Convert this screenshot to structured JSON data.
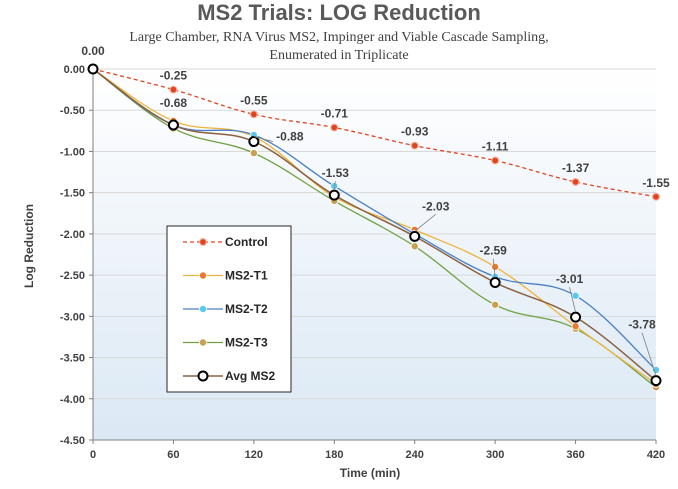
{
  "chart_data": {
    "type": "line",
    "title": "MS2 Trials: LOG Reduction",
    "subtitle_lines": [
      "Large Chamber, RNA Virus MS2, Impinger and Viable Cascade Sampling,",
      "Enumerated in Triplicate"
    ],
    "xlabel": "Time (min)",
    "ylabel": "Log Reduction",
    "x": [
      0,
      60,
      120,
      180,
      240,
      300,
      360,
      420
    ],
    "xticks": [
      "0",
      "60",
      "120",
      "180",
      "240",
      "300",
      "360",
      "420"
    ],
    "xlim": [
      0,
      420
    ],
    "ylim": [
      -4.5,
      0
    ],
    "yticks": [
      "0.00",
      "-0.50",
      "-1.00",
      "-1.50",
      "-2.00",
      "-2.50",
      "-3.00",
      "-3.50",
      "-4.00",
      "-4.50"
    ],
    "legend_position": "lower-left",
    "series": [
      {
        "name": "Control",
        "color": "#e0441e",
        "style": "dashed",
        "values": [
          0.0,
          -0.25,
          -0.55,
          -0.71,
          -0.93,
          -1.11,
          -1.37,
          -1.55
        ],
        "labels": [
          "0.00",
          "-0.25",
          "-0.55",
          "-0.71",
          "-0.93",
          "-1.11",
          "-1.37",
          "-1.55"
        ]
      },
      {
        "name": "MS2-T1",
        "color": "#f0b43c",
        "marker_color": "#e87a30",
        "style": "solid",
        "values": [
          0.0,
          -0.63,
          -0.82,
          -1.55,
          -1.95,
          -2.4,
          -3.12,
          -3.82
        ]
      },
      {
        "name": "MS2-T2",
        "color": "#4a7fc8",
        "marker_color": "#5bc8f0",
        "style": "solid",
        "values": [
          0.0,
          -0.68,
          -0.8,
          -1.42,
          -2.0,
          -2.52,
          -2.75,
          -3.65
        ]
      },
      {
        "name": "MS2-T3",
        "color": "#70a040",
        "marker_color": "#c8a050",
        "style": "solid",
        "values": [
          0.0,
          -0.72,
          -1.02,
          -1.6,
          -2.15,
          -2.86,
          -3.15,
          -3.86
        ]
      },
      {
        "name": "Avg MS2",
        "color": "#8a6040",
        "marker_color": "#000000",
        "style": "solid",
        "values": [
          0.0,
          -0.68,
          -0.88,
          -1.53,
          -2.03,
          -2.59,
          -3.01,
          -3.78
        ],
        "labels": [
          "",
          "-0.68",
          "-0.88",
          "-1.53",
          "-2.03",
          "-2.59",
          "-3.01",
          "-3.78"
        ]
      }
    ]
  }
}
